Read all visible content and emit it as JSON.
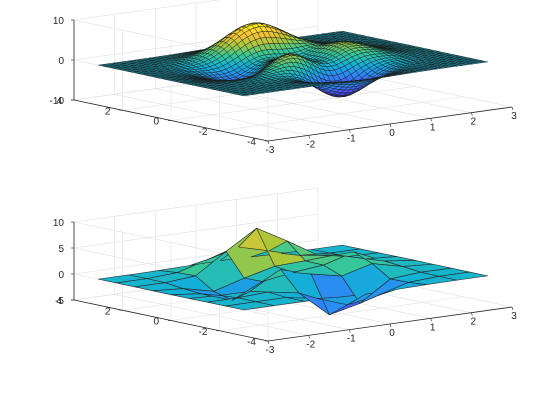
{
  "chart_data": [
    {
      "type": "surface",
      "function": "peaks",
      "mesh": "fine",
      "grid_points": 49,
      "xlim": [
        -3,
        3
      ],
      "ylim": [
        -4,
        4
      ],
      "zlim": [
        -10,
        10
      ],
      "x_ticks": [
        "-3",
        "-2",
        "-1",
        "0",
        "1",
        "2",
        "3"
      ],
      "y_ticks": [
        "-4",
        "-2",
        "0",
        "2",
        "4"
      ],
      "z_ticks": [
        "-10",
        "0",
        "10"
      ],
      "z_tick_values": [
        -10,
        0,
        10
      ],
      "colormap": "parula",
      "grid": true,
      "title": "",
      "xlabel": "",
      "ylabel": "",
      "zlabel": ""
    },
    {
      "type": "surface",
      "function": "peaks",
      "mesh": "coarse",
      "grid_points": 9,
      "xlim": [
        -3,
        3
      ],
      "ylim": [
        -4,
        4
      ],
      "zlim": [
        -5,
        10
      ],
      "x_ticks": [
        "-3",
        "-2",
        "-1",
        "0",
        "1",
        "2",
        "3"
      ],
      "y_ticks": [
        "-4",
        "-2",
        "0",
        "2",
        "4"
      ],
      "z_ticks": [
        "-5",
        "0",
        "5",
        "10"
      ],
      "z_tick_values": [
        -5,
        0,
        5,
        10
      ],
      "colormap": "parula",
      "grid": true,
      "title": "",
      "xlabel": "",
      "ylabel": "",
      "zlabel": ""
    }
  ],
  "colors": {
    "edge_fine": "#1a1a1a",
    "edge_coarse": "#262626",
    "axis": "#262626",
    "grid": "#e0e0e0",
    "background": "#ffffff"
  }
}
